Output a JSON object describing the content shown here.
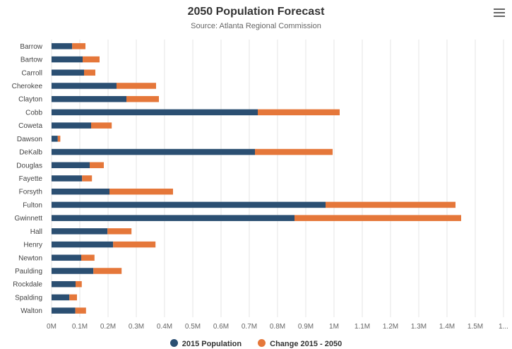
{
  "colors": {
    "series1": "#2b4f72",
    "series2": "#e5773a",
    "grid": "#e6e6e6",
    "text": "#666666"
  },
  "menu_icon": "hamburger-menu-icon",
  "chart_data": {
    "type": "bar",
    "orientation": "horizontal",
    "stacked": true,
    "title": "2050 Population Forecast",
    "subtitle": "Source: Atlanta Regional Commission",
    "categories": [
      "Barrow",
      "Bartow",
      "Carroll",
      "Cherokee",
      "Clayton",
      "Cobb",
      "Coweta",
      "Dawson",
      "DeKalb",
      "Douglas",
      "Fayette",
      "Forsyth",
      "Fulton",
      "Gwinnett",
      "Hall",
      "Henry",
      "Newton",
      "Paulding",
      "Rockdale",
      "Spalding",
      "Walton"
    ],
    "series": [
      {
        "name": "2015 Population",
        "values": [
          73000,
          110000,
          115000,
          230000,
          265000,
          730000,
          140000,
          22000,
          720000,
          135000,
          108000,
          205000,
          970000,
          860000,
          198000,
          218000,
          105000,
          148000,
          85000,
          63000,
          84000
        ]
      },
      {
        "name": "Change 2015 - 2050",
        "values": [
          47000,
          60000,
          40000,
          140000,
          115000,
          290000,
          73000,
          9000,
          275000,
          50000,
          35000,
          225000,
          460000,
          590000,
          85000,
          150000,
          47000,
          100000,
          22000,
          27000,
          38000
        ]
      }
    ],
    "xlim": [
      0,
      1600000
    ],
    "tick_labels": [
      "0M",
      "0.1M",
      "0.2M",
      "0.3M",
      "0.4M",
      "0.5M",
      "0.6M",
      "0.7M",
      "0.8M",
      "0.9M",
      "1M",
      "1.1M",
      "1.2M",
      "1.3M",
      "1.4M",
      "1.5M",
      "1..."
    ],
    "grid": true,
    "legend_position": "bottom"
  }
}
